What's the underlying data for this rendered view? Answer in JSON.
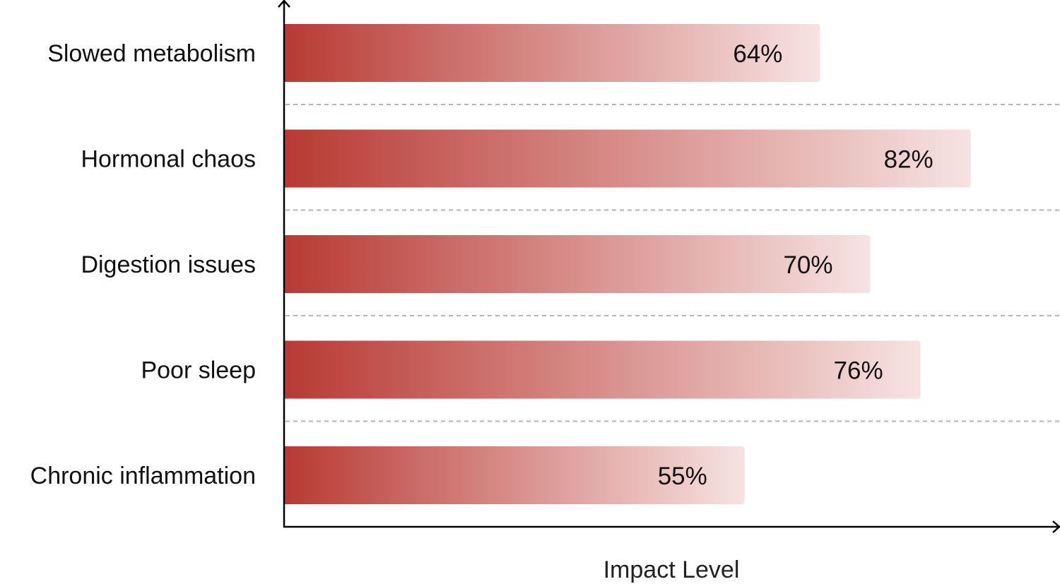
{
  "chart_data": {
    "type": "bar",
    "orientation": "horizontal",
    "categories": [
      "Slowed metabolism",
      "Hormonal chaos",
      "Digestion issues",
      "Poor sleep",
      "Chronic inflammation"
    ],
    "values": [
      64,
      82,
      70,
      76,
      55
    ],
    "value_labels": [
      "64%",
      "82%",
      "70%",
      "76%",
      "55%"
    ],
    "unit": "%",
    "title": "",
    "xlabel": "Impact Level",
    "ylabel": "",
    "grid": "dashed horizontal separators",
    "colors": {
      "gradient_start": "#b93a34",
      "gradient_end": "#f6e3e2",
      "axis": "#000000",
      "grid": "#b5b5b5"
    }
  }
}
